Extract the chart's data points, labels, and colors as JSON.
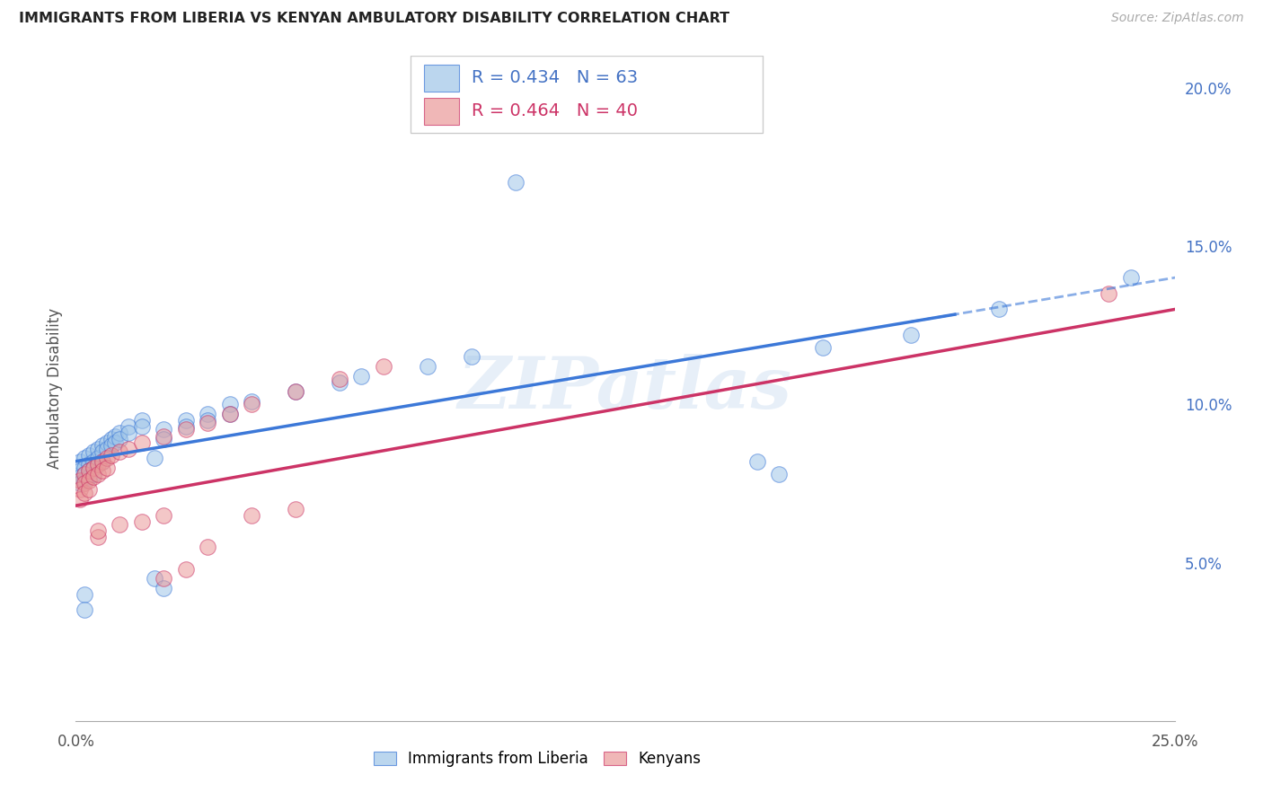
{
  "title": "IMMIGRANTS FROM LIBERIA VS KENYAN AMBULATORY DISABILITY CORRELATION CHART",
  "source": "Source: ZipAtlas.com",
  "ylabel": "Ambulatory Disability",
  "xlim": [
    0.0,
    0.25
  ],
  "ylim": [
    0.0,
    0.21
  ],
  "color_blue": "#9fc5e8",
  "color_pink": "#ea9999",
  "color_line_blue": "#3c78d8",
  "color_line_pink": "#cc3366",
  "watermark": "ZIPatlas",
  "R_liberia": 0.434,
  "N_liberia": 63,
  "R_kenya": 0.464,
  "N_kenya": 40,
  "yticks_right": [
    0.05,
    0.1,
    0.15,
    0.2
  ],
  "ytick_labels_right": [
    "5.0%",
    "10.0%",
    "15.0%",
    "20.0%"
  ],
  "xticks": [
    0.0,
    0.05,
    0.1,
    0.15,
    0.2,
    0.25
  ],
  "xtick_labels": [
    "0.0%",
    "",
    "",
    "",
    "",
    "25.0%"
  ],
  "legend_bottom": [
    "Immigrants from Liberia",
    "Kenyans"
  ],
  "blue_line_x0": 0.0,
  "blue_line_y0": 0.082,
  "blue_line_x1": 0.25,
  "blue_line_y1": 0.14,
  "pink_line_x0": 0.0,
  "pink_line_y0": 0.068,
  "pink_line_x1": 0.25,
  "pink_line_y1": 0.13
}
